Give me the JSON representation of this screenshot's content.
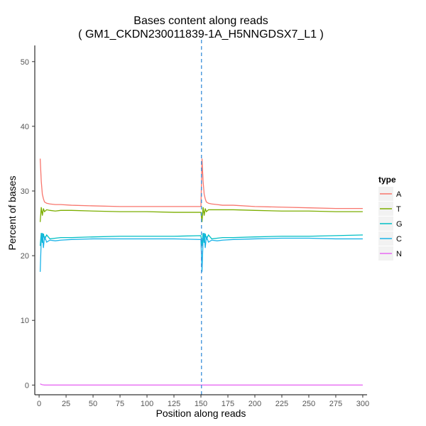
{
  "chart_data": {
    "type": "line",
    "title": "Bases content along reads",
    "subtitle": "( GM1_CKDN230011839-1A_H5NNGDSX7_L1 )",
    "xlabel": "Position along reads",
    "ylabel": "Percent of bases",
    "xlim": [
      -4,
      304
    ],
    "ylim": [
      -1.5,
      52.5
    ],
    "xticks": [
      0,
      25,
      50,
      75,
      100,
      125,
      150,
      175,
      200,
      225,
      250,
      275,
      300
    ],
    "yticks": [
      0,
      10,
      20,
      30,
      40,
      50
    ],
    "grid": false,
    "legend": {
      "title": "type",
      "position": "right"
    },
    "vline": {
      "x": 150.5,
      "style": "dashed",
      "color": "#3a8fd9"
    },
    "series": [
      {
        "name": "A",
        "color": "#f8766d",
        "x": [
          1,
          2,
          3,
          4,
          5,
          7,
          10,
          15,
          20,
          30,
          50,
          75,
          100,
          125,
          150,
          151,
          152,
          153,
          154,
          155,
          157,
          160,
          165,
          170,
          180,
          200,
          225,
          250,
          275,
          300
        ],
        "y": [
          35.0,
          31.5,
          29.5,
          28.8,
          28.3,
          28.1,
          28.0,
          27.9,
          27.9,
          27.8,
          27.7,
          27.6,
          27.6,
          27.6,
          27.6,
          35.0,
          31.5,
          29.5,
          28.8,
          28.3,
          28.1,
          28.0,
          27.9,
          27.8,
          27.8,
          27.6,
          27.5,
          27.4,
          27.3,
          27.3
        ]
      },
      {
        "name": "T",
        "color": "#7cae00",
        "x": [
          1,
          2,
          3,
          4,
          5,
          7,
          10,
          15,
          20,
          30,
          50,
          75,
          100,
          125,
          150,
          151,
          152,
          153,
          154,
          155,
          157,
          160,
          165,
          170,
          180,
          200,
          225,
          250,
          275,
          300
        ],
        "y": [
          25.2,
          27.5,
          26.2,
          27.3,
          26.8,
          27.1,
          27.0,
          26.9,
          27.0,
          27.0,
          26.9,
          26.8,
          26.8,
          26.7,
          26.7,
          25.2,
          27.5,
          26.2,
          27.3,
          26.8,
          27.1,
          27.1,
          27.1,
          27.1,
          27.1,
          27.0,
          26.9,
          26.9,
          26.8,
          26.8
        ]
      },
      {
        "name": "G",
        "color": "#00bfc4",
        "x": [
          1,
          2,
          3,
          4,
          5,
          7,
          10,
          15,
          20,
          30,
          50,
          75,
          100,
          125,
          150,
          151,
          152,
          153,
          154,
          155,
          157,
          160,
          165,
          170,
          180,
          200,
          225,
          250,
          275,
          300
        ],
        "y": [
          21.5,
          23.5,
          22.0,
          23.4,
          22.5,
          23.2,
          22.6,
          22.7,
          22.8,
          22.8,
          22.9,
          23.0,
          23.0,
          23.0,
          23.1,
          21.5,
          23.5,
          22.0,
          23.4,
          22.5,
          23.2,
          22.6,
          22.7,
          22.8,
          22.8,
          22.9,
          23.0,
          23.0,
          23.1,
          23.2
        ]
      },
      {
        "name": "C",
        "color": "#1bb3e8",
        "x": [
          1,
          2,
          3,
          4,
          5,
          7,
          10,
          15,
          20,
          30,
          50,
          75,
          100,
          125,
          150,
          151,
          152,
          153,
          154,
          155,
          157,
          160,
          165,
          170,
          180,
          200,
          225,
          250,
          275,
          300
        ],
        "y": [
          17.5,
          22.5,
          23.5,
          21.2,
          23.0,
          22.1,
          22.4,
          22.3,
          22.4,
          22.5,
          22.6,
          22.6,
          22.6,
          22.6,
          22.5,
          17.5,
          22.5,
          23.5,
          21.2,
          23.0,
          22.1,
          22.4,
          22.3,
          22.4,
          22.5,
          22.6,
          22.7,
          22.7,
          22.6,
          22.6
        ]
      },
      {
        "name": "N",
        "color": "#e76bf3",
        "x": [
          1,
          2,
          3,
          5,
          10,
          50,
          100,
          150,
          151,
          152,
          200,
          250,
          300
        ],
        "y": [
          0.2,
          0.1,
          0.05,
          0.0,
          0.0,
          0.0,
          0.0,
          0.0,
          0.0,
          0.0,
          0.0,
          0.0,
          0.0
        ]
      }
    ]
  }
}
